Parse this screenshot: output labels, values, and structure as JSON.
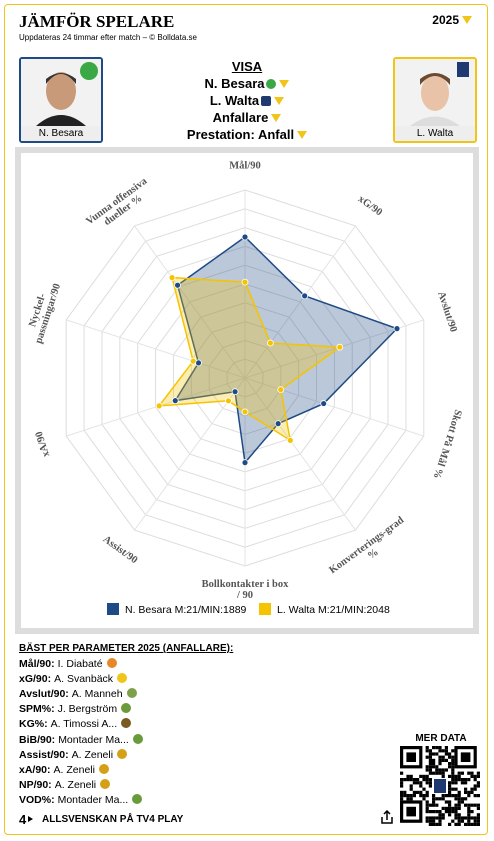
{
  "header": {
    "title": "JÄMFÖR SPELARE",
    "year": "2025",
    "subtitle": "Uppdateras 24 timmar efter match – © Bolldata.se"
  },
  "players": [
    {
      "name": "N. Besara"
    },
    {
      "name": "L. Walta"
    }
  ],
  "selection": {
    "heading": "VISA",
    "player1": "N. Besara",
    "player2": "L. Walta",
    "position": "Anfallare",
    "metric": "Prestation: Anfall"
  },
  "chart_data": {
    "type": "radar",
    "categories": [
      "Mål/90",
      "xG/90",
      "Avslut/90",
      "Skott På Mål %",
      "Konverterings-grad %",
      "Bollkontakter i box / 90",
      "Assist/90",
      "xA/90",
      "Nyckel-passningar/90",
      "Vunna offensiva dueller %"
    ],
    "ylim": [
      0,
      100
    ],
    "series": [
      {
        "name": "N. Besara M:21/MIN:1889",
        "color": "#1e4a85",
        "values": [
          75,
          54,
          85,
          44,
          30,
          45,
          9,
          39,
          26,
          61
        ]
      },
      {
        "name": "L. Walta M:21/MIN:2048",
        "color": "#f5c400",
        "values": [
          51,
          23,
          53,
          20,
          41,
          18,
          15,
          48,
          29,
          66
        ]
      }
    ]
  },
  "best": {
    "title": "BÄST PER PARAMETER 2025 (ANFALLARE):",
    "rows": [
      {
        "label": "Mål/90:",
        "player": "I. Diabaté"
      },
      {
        "label": "xG/90:",
        "player": "A. Svanbäck"
      },
      {
        "label": "Avslut/90:",
        "player": "A. Manneh"
      },
      {
        "label": "SPM%:",
        "player": "J. Bergström"
      },
      {
        "label": "KG%:",
        "player": "A. Timossi A..."
      },
      {
        "label": "BiB/90:",
        "player": "Montader Ma..."
      },
      {
        "label": "Assist/90:",
        "player": "A. Zeneli"
      },
      {
        "label": "xA/90:",
        "player": "A. Zeneli"
      },
      {
        "label": "NP/90:",
        "player": "A. Zeneli"
      },
      {
        "label": "VOD%:",
        "player": "Montader Ma..."
      }
    ]
  },
  "qr": {
    "title": "MER DATA"
  },
  "footer": {
    "logo": "4",
    "text": "ALLSVENSKAN PÅ TV4 PLAY"
  }
}
